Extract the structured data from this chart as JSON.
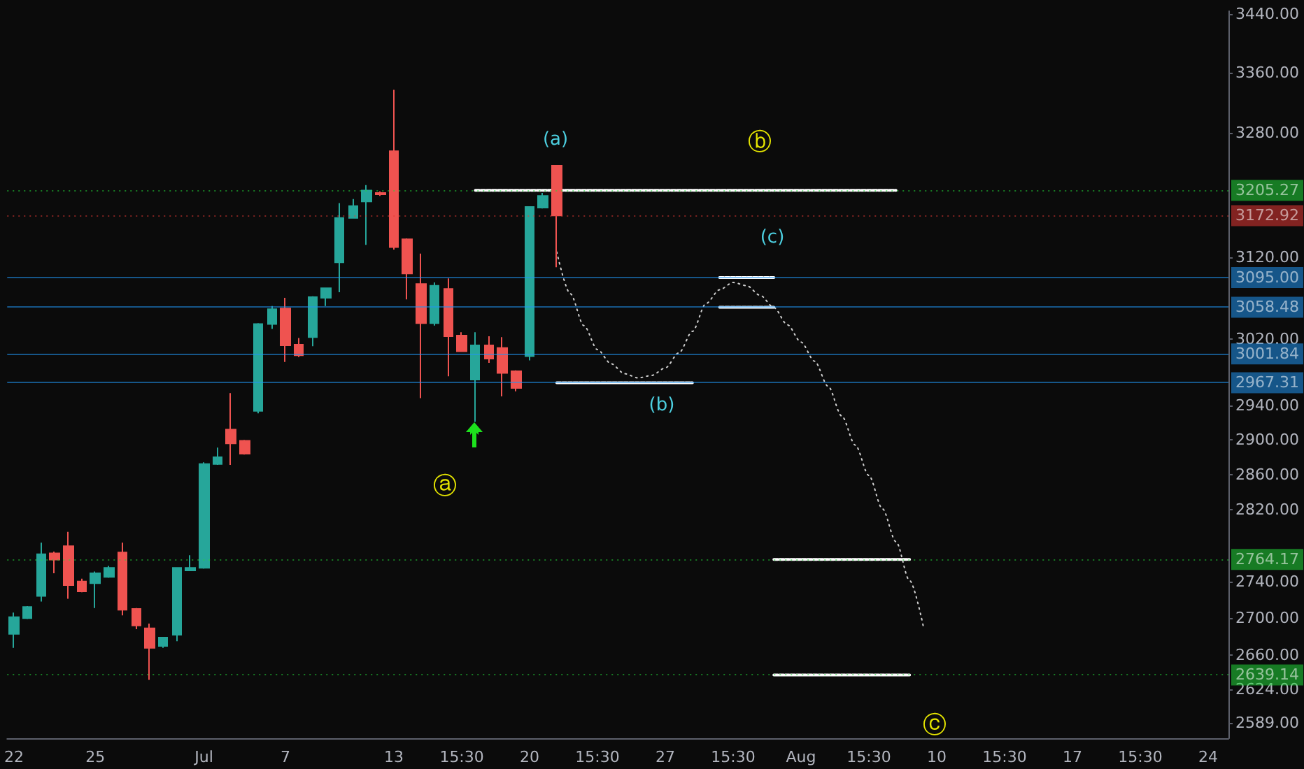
{
  "chart_data": {
    "type": "candlestick",
    "log": true,
    "categories": [
      "22",
      null,
      null,
      null,
      null,
      null,
      "25",
      null,
      null,
      null,
      null,
      null,
      null,
      null,
      "Jul",
      null,
      null,
      null,
      null,
      null,
      "7",
      null,
      null,
      null,
      null,
      null,
      null,
      null,
      "13",
      null,
      null,
      null,
      null,
      "15:30",
      null,
      null,
      null,
      null,
      "20",
      null,
      null,
      null,
      null,
      "15:30",
      null,
      null,
      null,
      null,
      "27",
      null,
      null,
      null,
      null,
      "15:30",
      null,
      null,
      null,
      null,
      "Aug",
      null,
      null,
      null,
      null,
      "15:30",
      null,
      null,
      null,
      null,
      "10",
      null,
      null,
      null,
      null,
      "15:30",
      null,
      null,
      null,
      null,
      "17",
      null,
      null,
      null,
      null,
      "15:30",
      null,
      null,
      null,
      null,
      "24",
      null
    ],
    "ohlc": [
      [
        2683,
        2706,
        2668,
        2701
      ],
      [
        2700,
        2713,
        2699,
        2712
      ],
      [
        2724,
        2783,
        2718,
        2770
      ],
      [
        2771,
        2773,
        2749,
        2764
      ],
      [
        2779,
        2795,
        2721,
        2736
      ],
      [
        2740,
        2743,
        2728,
        2729
      ],
      [
        2738,
        2751,
        2711,
        2749
      ],
      [
        2745,
        2757,
        2744,
        2755
      ],
      [
        2772,
        2783,
        2703,
        2709
      ],
      [
        2710,
        2711,
        2688,
        2692
      ],
      [
        2689,
        2694,
        2634,
        2668
      ],
      [
        2670,
        2679,
        2668,
        2679
      ],
      [
        2682,
        2755,
        2675,
        2755
      ],
      [
        2752,
        2769,
        2752,
        2755
      ],
      [
        2755,
        2874,
        2754,
        2872
      ],
      [
        2872,
        2891,
        2871,
        2880
      ],
      [
        2912,
        2955,
        2871,
        2896
      ],
      [
        2899,
        2900,
        2883,
        2884
      ],
      [
        2934,
        3039,
        2931,
        3038
      ],
      [
        3038,
        3060,
        3032,
        3056
      ],
      [
        3057,
        3070,
        2992,
        3012
      ],
      [
        3013,
        3021,
        2998,
        3000
      ],
      [
        3022,
        3072,
        3011,
        3071
      ],
      [
        3070,
        3082,
        3060,
        3082
      ],
      [
        3114,
        3189,
        3077,
        3170
      ],
      [
        3170,
        3194,
        3169,
        3185
      ],
      [
        3191,
        3212,
        3136,
        3205
      ],
      [
        3202,
        3204,
        3198,
        3200
      ],
      [
        3256,
        3337,
        3130,
        3133
      ],
      [
        3143,
        3144,
        3068,
        3100
      ],
      [
        3087,
        3125,
        2949,
        3039
      ],
      [
        3039,
        3089,
        3036,
        3085
      ],
      [
        3081,
        3094,
        2975,
        3023
      ],
      [
        3024,
        3028,
        3004,
        3005
      ],
      [
        2971,
        3028,
        2921,
        3012
      ],
      [
        3012,
        3023,
        2991,
        2996
      ],
      [
        3009,
        3022,
        2951,
        2979
      ],
      [
        2981,
        2982,
        2957,
        2961
      ],
      [
        2999,
        3184,
        2994,
        3184
      ],
      [
        3183,
        3202,
        3182,
        3198
      ],
      [
        3237,
        3238,
        3108,
        3173
      ],
      null,
      null,
      null,
      null,
      null,
      null,
      null,
      null,
      null,
      null,
      null,
      null,
      null,
      null,
      null,
      null,
      null,
      null,
      null,
      null,
      null,
      null,
      null,
      null,
      null,
      null,
      null,
      null,
      null,
      null,
      null,
      null,
      null,
      null,
      null,
      null,
      null,
      null,
      null,
      null,
      null,
      null,
      null,
      null,
      null,
      null,
      null,
      null,
      null
    ],
    "colors": [
      "#26a69a",
      "#26a69a",
      "#26a69a",
      "#ef5350",
      "#ef5350",
      "#ef5350",
      "#26a69a",
      "#26a69a",
      "#ef5350",
      "#ef5350",
      "#ef5350",
      "#26a69a",
      "#26a69a",
      "#26a69a",
      "#26a69a",
      "#26a69a",
      "#ef5350",
      "#ef5350",
      "#26a69a",
      "#26a69a",
      "#ef5350",
      "#ef5350",
      "#26a69a",
      "#26a69a",
      "#26a69a",
      "#26a69a",
      "#26a69a",
      "#ef5350",
      "#ef5350",
      "#ef5350",
      "#ef5350",
      "#26a69a",
      "#ef5350",
      "#ef5350",
      "#26a69a",
      "#ef5350",
      "#ef5350",
      "#ef5350",
      "#26a69a",
      "#26a69a",
      "#ef5350",
      null,
      null,
      null,
      null,
      null,
      null,
      null,
      null,
      null,
      null,
      null,
      null,
      null,
      null,
      null,
      null,
      null,
      null,
      null,
      null,
      null,
      null,
      null,
      null,
      null,
      null,
      null,
      null,
      null,
      null,
      null,
      null,
      null,
      null,
      null,
      null,
      null,
      null,
      null,
      null,
      null,
      null,
      null,
      null,
      null,
      null,
      null,
      null,
      null
    ],
    "series": [
      {
        "type": "line",
        "color": "#d0d0d0",
        "line_style": "dotted",
        "values": [
          null,
          null,
          null,
          null,
          null,
          null,
          null,
          null,
          null,
          null,
          null,
          null,
          null,
          null,
          null,
          null,
          null,
          null,
          null,
          null,
          null,
          null,
          null,
          null,
          null,
          null,
          null,
          null,
          null,
          null,
          null,
          null,
          null,
          null,
          null,
          null,
          null,
          null,
          null,
          null,
          3127,
          3075,
          3036,
          3007,
          2990,
          2978,
          2973,
          2976,
          2985,
          3003,
          3029,
          3063,
          3080,
          3089,
          3085,
          3073,
          3058,
          3037,
          3016,
          2993,
          2963,
          2928,
          2894,
          2859,
          2821,
          2784,
          2741,
          2692,
          null,
          null,
          null,
          null,
          null,
          null,
          null,
          null,
          null,
          null,
          null,
          null,
          null,
          null,
          null,
          null,
          null,
          null,
          null,
          null,
          null,
          null
        ]
      },
      {
        "type": "line",
        "color": "#ffffff",
        "line_style": "dashed",
        "values": [
          null,
          null,
          null,
          null,
          null,
          null,
          null,
          null,
          null,
          null,
          null,
          null,
          null,
          null,
          null,
          null,
          null,
          null,
          null,
          null,
          null,
          null,
          null,
          null,
          null,
          null,
          null,
          null,
          null,
          null,
          null,
          null,
          null,
          null,
          3205.27,
          3205.27,
          3205.27,
          3205.27,
          3205.27,
          3205.27,
          3205.27,
          3205.27,
          3205.27,
          3205.27,
          3205.27,
          3205.27,
          3205.27,
          3205.27,
          3205.27,
          3205.27,
          3205.27,
          3205.27,
          3205.27,
          3205.27,
          3205.27,
          3205.27,
          3205.27,
          3205.27,
          3205.27,
          3205.27,
          3205.27,
          3205.27,
          3205.27,
          3205.27,
          3205.27,
          3205.27,
          null,
          null,
          null,
          null,
          null,
          null,
          null,
          null,
          null,
          null,
          null,
          null,
          null,
          null,
          null,
          null,
          null,
          null,
          null,
          null,
          null,
          null,
          null,
          null
        ]
      },
      {
        "type": "line",
        "color": "#ffffff",
        "line_style": "dashed",
        "values": [
          null,
          null,
          null,
          null,
          null,
          null,
          null,
          null,
          null,
          null,
          null,
          null,
          null,
          null,
          null,
          null,
          null,
          null,
          null,
          null,
          null,
          null,
          null,
          null,
          null,
          null,
          null,
          null,
          null,
          null,
          null,
          null,
          null,
          null,
          null,
          null,
          null,
          null,
          null,
          null,
          2967.31,
          2967.31,
          2967.31,
          2967.31,
          2967.31,
          2967.31,
          2967.31,
          2967.31,
          2967.31,
          2967.31,
          2967.31,
          null,
          null,
          null,
          null,
          null,
          null,
          null,
          null,
          null,
          null,
          null,
          null,
          null,
          null,
          null,
          null,
          null,
          null,
          null,
          null,
          null,
          null,
          null,
          null,
          null,
          null,
          null,
          null,
          null,
          null,
          null,
          null,
          null,
          null,
          null,
          null,
          null,
          null,
          null
        ]
      },
      {
        "type": "line",
        "color": "#ffffff",
        "line_style": "dashed",
        "values": [
          null,
          null,
          null,
          null,
          null,
          null,
          null,
          null,
          null,
          null,
          null,
          null,
          null,
          null,
          null,
          null,
          null,
          null,
          null,
          null,
          null,
          null,
          null,
          null,
          null,
          null,
          null,
          null,
          null,
          null,
          null,
          null,
          null,
          null,
          null,
          null,
          null,
          null,
          null,
          null,
          null,
          null,
          null,
          null,
          null,
          null,
          null,
          null,
          null,
          null,
          null,
          null,
          3095.0,
          3095.0,
          3095.0,
          3095.0,
          3095.0,
          null,
          null,
          null,
          null,
          null,
          null,
          null,
          null,
          null,
          null,
          null,
          null,
          null,
          null,
          null,
          null,
          null,
          null,
          null,
          null,
          null,
          null,
          null,
          null,
          null,
          null,
          null,
          null,
          null,
          null,
          null,
          null,
          null
        ]
      },
      {
        "type": "line",
        "color": "#ffffff",
        "line_style": "dashed",
        "values": [
          null,
          null,
          null,
          null,
          null,
          null,
          null,
          null,
          null,
          null,
          null,
          null,
          null,
          null,
          null,
          null,
          null,
          null,
          null,
          null,
          null,
          null,
          null,
          null,
          null,
          null,
          null,
          null,
          null,
          null,
          null,
          null,
          null,
          null,
          null,
          null,
          null,
          null,
          null,
          null,
          null,
          null,
          null,
          null,
          null,
          null,
          null,
          null,
          null,
          null,
          null,
          null,
          3058.48,
          3058.48,
          3058.48,
          3058.48,
          3058.48,
          null,
          null,
          null,
          null,
          null,
          null,
          null,
          null,
          null,
          null,
          null,
          null,
          null,
          null,
          null,
          null,
          null,
          null,
          null,
          null,
          null,
          null,
          null,
          null,
          null,
          null,
          null,
          null,
          null,
          null,
          null,
          null,
          null
        ]
      },
      {
        "type": "line",
        "color": "#ffffff",
        "line_style": "dashed",
        "values": [
          null,
          null,
          null,
          null,
          null,
          null,
          null,
          null,
          null,
          null,
          null,
          null,
          null,
          null,
          null,
          null,
          null,
          null,
          null,
          null,
          null,
          null,
          null,
          null,
          null,
          null,
          null,
          null,
          null,
          null,
          null,
          null,
          null,
          null,
          null,
          null,
          null,
          null,
          null,
          null,
          null,
          null,
          null,
          null,
          null,
          null,
          null,
          null,
          null,
          null,
          null,
          null,
          null,
          null,
          null,
          null,
          2764.17,
          2764.17,
          2764.17,
          2764.17,
          2764.17,
          2764.17,
          2764.17,
          2764.17,
          2764.17,
          2764.17,
          2764.17,
          null,
          null,
          null,
          null,
          null,
          null,
          null,
          null,
          null,
          null,
          null,
          null,
          null,
          null,
          null,
          null,
          null,
          null,
          null,
          null,
          null,
          null,
          null
        ]
      },
      {
        "type": "line",
        "color": "#ffffff",
        "line_style": "dashed",
        "values": [
          null,
          null,
          null,
          null,
          null,
          null,
          null,
          null,
          null,
          null,
          null,
          null,
          null,
          null,
          null,
          null,
          null,
          null,
          null,
          null,
          null,
          null,
          null,
          null,
          null,
          null,
          null,
          null,
          null,
          null,
          null,
          null,
          null,
          null,
          null,
          null,
          null,
          null,
          null,
          null,
          null,
          null,
          null,
          null,
          null,
          null,
          null,
          null,
          null,
          null,
          null,
          null,
          null,
          null,
          null,
          null,
          2639.14,
          2639.14,
          2639.14,
          2639.14,
          2639.14,
          2639.14,
          2639.14,
          2639.14,
          2639.14,
          2639.14,
          2639.14,
          null,
          null,
          null,
          null,
          null,
          null,
          null,
          null,
          null,
          null,
          null,
          null,
          null,
          null,
          null,
          null,
          null,
          null,
          null,
          null,
          null,
          null,
          null
        ]
      }
    ],
    "ylim": [
      2573,
      3444
    ],
    "yticks": [
      {
        "value": 3440,
        "label": "3440.00"
      },
      {
        "value": 3360,
        "label": "3360.00"
      },
      {
        "value": 3280,
        "label": "3280.00"
      },
      {
        "value": 3120,
        "label": "3120.00"
      },
      {
        "value": 3020,
        "label": "3020.00"
      },
      {
        "value": 2940,
        "label": "2940.00"
      },
      {
        "value": 2900,
        "label": "2900.00"
      },
      {
        "value": 2860,
        "label": "2860.00"
      },
      {
        "value": 2820,
        "label": "2820.00"
      },
      {
        "value": 2740,
        "label": "2740.00"
      },
      {
        "value": 2700,
        "label": "2700.00"
      },
      {
        "value": 2660,
        "label": "2660.00"
      },
      {
        "value": 2624,
        "label": "2624.00"
      },
      {
        "value": 2589,
        "label": "2589.00"
      }
    ],
    "ref_lines": [
      {
        "axis": "y",
        "value": 3205.27,
        "label": "3205.27",
        "color": "#22d93a",
        "line_style": "dotted"
      },
      {
        "axis": "y",
        "value": 3172.92,
        "label": "3172.92",
        "color": "#e53935",
        "line_style": "dotted"
      },
      {
        "axis": "y",
        "value": 3095.0,
        "label": "3095.00",
        "color": "#2196f3",
        "line_style": "solid"
      },
      {
        "axis": "y",
        "value": 3058.48,
        "label": "3058.48",
        "color": "#2196f3",
        "line_style": "solid"
      },
      {
        "axis": "y",
        "value": 3001.84,
        "label": "3001.84",
        "color": "#2196f3",
        "line_style": "solid"
      },
      {
        "axis": "y",
        "value": 2967.31,
        "label": "2967.31",
        "color": "#2196f3",
        "line_style": "solid"
      },
      {
        "axis": "y",
        "value": 2764.17,
        "label": "2764.17",
        "color": "#22d93a",
        "line_style": "dotted"
      },
      {
        "axis": "y",
        "value": 2639.14,
        "label": "2639.14",
        "color": "#22d93a",
        "line_style": "dotted"
      }
    ],
    "annotations": [
      "(a)",
      "ⓑ",
      "(c)",
      "(b)",
      "ⓐ",
      "ⓒ"
    ]
  }
}
